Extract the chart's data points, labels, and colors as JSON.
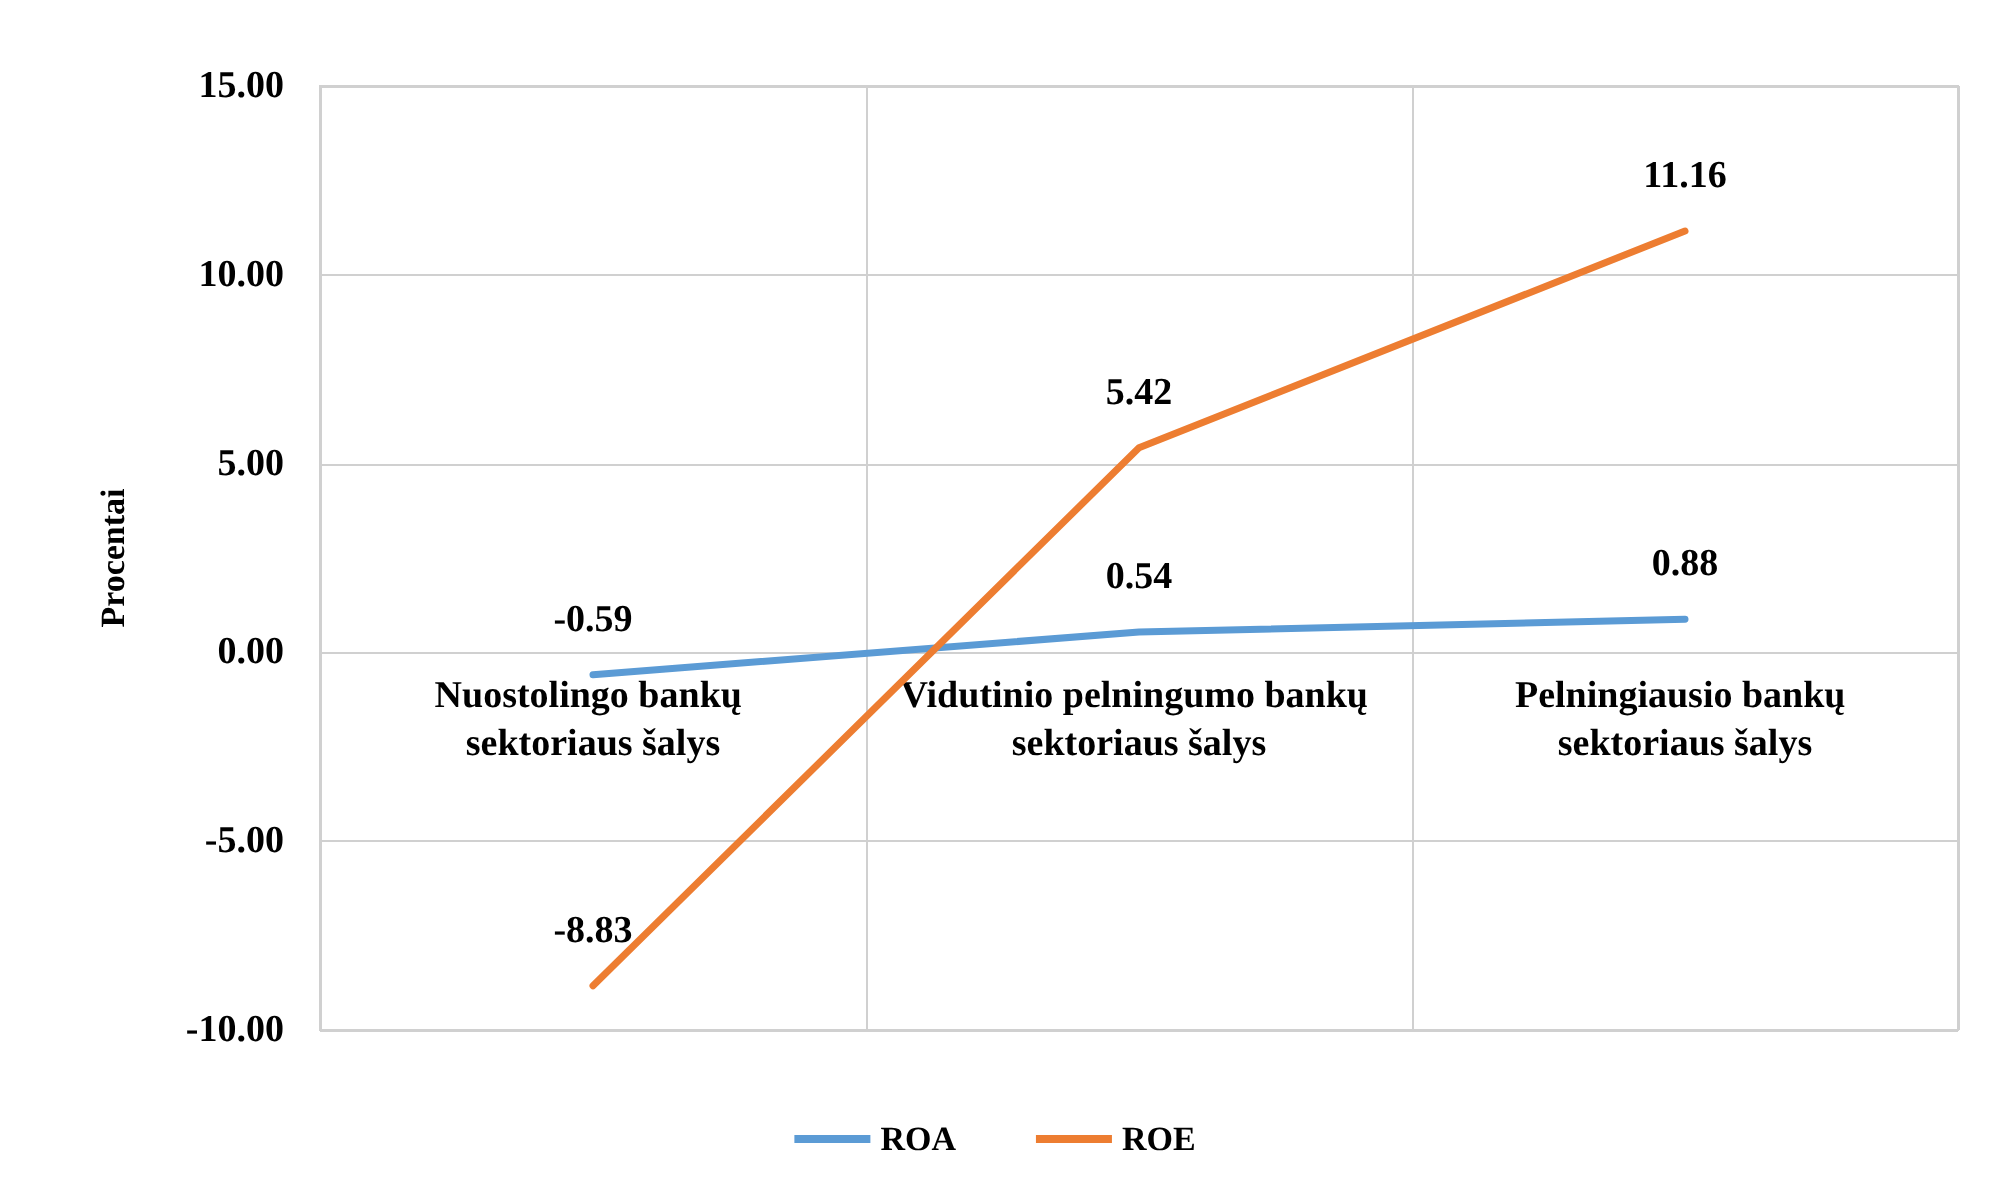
{
  "chart_data": {
    "type": "line",
    "ylabel": "Procentai",
    "categories": [
      "Nuostolingo bankų sektoriaus šalys",
      "Vidutinio pelningumo bankų sektoriaus šalys",
      "Pelningiausio bankų sektoriaus šalys"
    ],
    "series": [
      {
        "name": "ROA",
        "color": "#5b9bd5",
        "values": [
          -0.59,
          0.54,
          0.88
        ]
      },
      {
        "name": "ROE",
        "color": "#ed7d31",
        "values": [
          -8.83,
          5.42,
          11.16
        ]
      }
    ],
    "ylim": [
      -10,
      15
    ],
    "yticks": [
      {
        "value": -10,
        "label": "-10.00"
      },
      {
        "value": -5,
        "label": "-5.00"
      },
      {
        "value": 0,
        "label": "0.00"
      },
      {
        "value": 5,
        "label": "5.00"
      },
      {
        "value": 10,
        "label": "10.00"
      },
      {
        "value": 15,
        "label": "15.00"
      }
    ],
    "grid": true,
    "legend": "bottom",
    "marker": "none",
    "line_style": "solid",
    "data_labels": true
  }
}
